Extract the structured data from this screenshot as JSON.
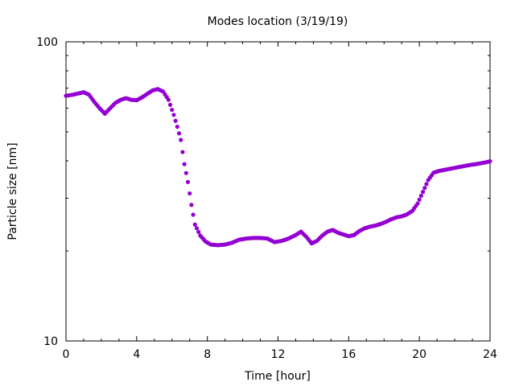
{
  "chart_data": {
    "type": "scatter",
    "title": "Modes location (3/19/19)",
    "xlabel": "Time [hour]",
    "ylabel": "Particle size [nm]",
    "xlim": [
      0,
      24
    ],
    "ylim": [
      10,
      100
    ],
    "yscale": "log",
    "xticks": [
      0,
      4,
      8,
      12,
      16,
      20,
      24
    ],
    "xtick_labels": [
      "0",
      "4",
      "8",
      "12",
      "16",
      "20",
      "24"
    ],
    "yticks": [
      10,
      100
    ],
    "ytick_labels": [
      "10",
      "100"
    ],
    "grid": false,
    "marker_color": "#9400d3",
    "series": [
      {
        "x": [
          0.0,
          0.35,
          0.7,
          1.0,
          1.3,
          1.6,
          1.9,
          2.2,
          2.5,
          2.8,
          3.1,
          3.4,
          3.7,
          4.0,
          4.3,
          4.6,
          4.9,
          5.2,
          5.5,
          5.8,
          6.1,
          6.3,
          6.5,
          6.7,
          6.9,
          7.1,
          7.3,
          7.6,
          7.9,
          8.2,
          8.6,
          9.0,
          9.4,
          9.8,
          10.2,
          10.6,
          11.0,
          11.4,
          11.8,
          12.2,
          12.6,
          13.0,
          13.3,
          13.6,
          13.9,
          14.2,
          14.5,
          14.8,
          15.1,
          15.4,
          15.7,
          16.0,
          16.3,
          16.6,
          16.9,
          17.2,
          17.5,
          17.8,
          18.1,
          18.4,
          18.7,
          19.0,
          19.3,
          19.6,
          19.9,
          20.2,
          20.5,
          20.8,
          21.1,
          21.4,
          21.7,
          22.0,
          22.3,
          22.6,
          22.9,
          23.2,
          23.5,
          23.8,
          24.0
        ],
        "y": [
          66.0,
          66.5,
          67.2,
          67.8,
          66.6,
          63.0,
          60.0,
          57.5,
          60.0,
          62.5,
          64.0,
          64.8,
          64.0,
          63.8,
          65.2,
          67.0,
          68.8,
          69.5,
          68.2,
          64.0,
          57.0,
          52.0,
          47.0,
          39.0,
          34.0,
          28.5,
          24.5,
          22.5,
          21.5,
          21.0,
          20.9,
          21.0,
          21.3,
          21.8,
          22.0,
          22.1,
          22.1,
          22.0,
          21.4,
          21.6,
          22.0,
          22.6,
          23.2,
          22.3,
          21.2,
          21.6,
          22.5,
          23.2,
          23.5,
          23.0,
          22.7,
          22.4,
          22.6,
          23.3,
          23.8,
          24.1,
          24.3,
          24.6,
          25.0,
          25.5,
          25.9,
          26.1,
          26.5,
          27.2,
          28.8,
          31.5,
          34.5,
          36.5,
          37.0,
          37.3,
          37.6,
          37.9,
          38.2,
          38.5,
          38.8,
          39.0,
          39.3,
          39.6,
          39.9
        ]
      }
    ]
  }
}
